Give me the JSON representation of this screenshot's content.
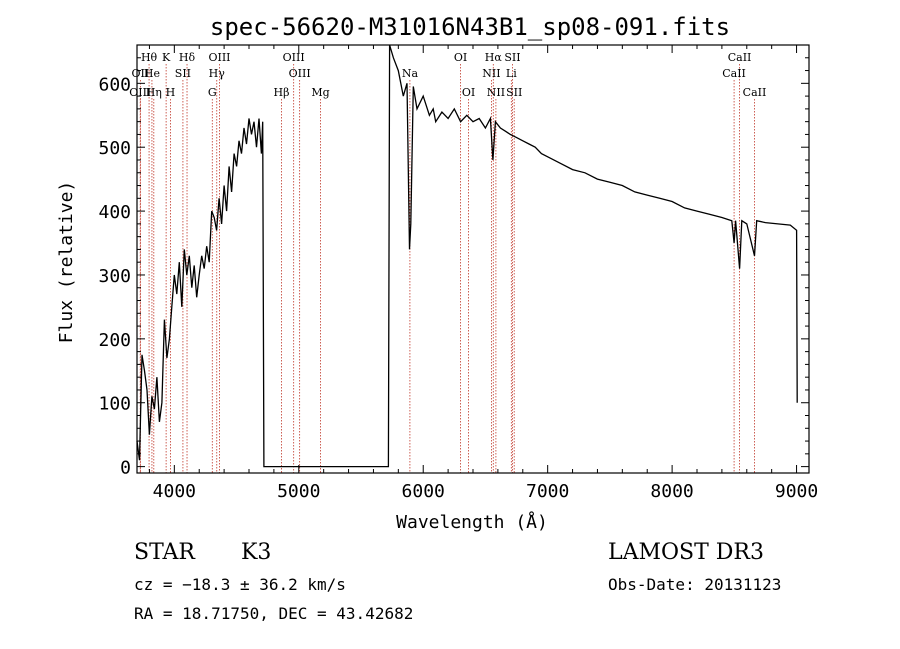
{
  "chart_data": {
    "type": "line",
    "title": "spec-56620-M31016N43B1_sp08-091.fits",
    "xlabel": "Wavelength (Å)",
    "ylabel": "Flux (relative)",
    "xlim": [
      3700,
      9100
    ],
    "ylim": [
      -10,
      660
    ],
    "x_ticks": [
      4000,
      5000,
      6000,
      7000,
      8000,
      9000
    ],
    "y_ticks": [
      0,
      100,
      200,
      300,
      400,
      500,
      600
    ],
    "grid": false,
    "series": [
      {
        "name": "spectrum",
        "points": [
          [
            3700,
            40
          ],
          [
            3720,
            10
          ],
          [
            3740,
            175
          ],
          [
            3760,
            150
          ],
          [
            3780,
            120
          ],
          [
            3800,
            50
          ],
          [
            3820,
            110
          ],
          [
            3840,
            90
          ],
          [
            3860,
            140
          ],
          [
            3880,
            70
          ],
          [
            3900,
            100
          ],
          [
            3920,
            230
          ],
          [
            3940,
            170
          ],
          [
            3960,
            200
          ],
          [
            3980,
            250
          ],
          [
            4000,
            300
          ],
          [
            4020,
            270
          ],
          [
            4040,
            320
          ],
          [
            4060,
            250
          ],
          [
            4080,
            340
          ],
          [
            4100,
            300
          ],
          [
            4120,
            330
          ],
          [
            4140,
            280
          ],
          [
            4160,
            315
          ],
          [
            4180,
            265
          ],
          [
            4200,
            300
          ],
          [
            4220,
            330
          ],
          [
            4240,
            310
          ],
          [
            4260,
            345
          ],
          [
            4280,
            320
          ],
          [
            4300,
            400
          ],
          [
            4320,
            390
          ],
          [
            4340,
            370
          ],
          [
            4360,
            420
          ],
          [
            4380,
            380
          ],
          [
            4400,
            440
          ],
          [
            4420,
            400
          ],
          [
            4440,
            470
          ],
          [
            4460,
            430
          ],
          [
            4480,
            490
          ],
          [
            4500,
            470
          ],
          [
            4520,
            510
          ],
          [
            4540,
            490
          ],
          [
            4560,
            530
          ],
          [
            4580,
            505
          ],
          [
            4600,
            545
          ],
          [
            4620,
            520
          ],
          [
            4640,
            540
          ],
          [
            4660,
            500
          ],
          [
            4680,
            545
          ],
          [
            4700,
            490
          ],
          [
            4710,
            540
          ],
          [
            4720,
            0
          ],
          [
            5720,
            0
          ],
          [
            5730,
            660
          ],
          [
            5760,
            640
          ],
          [
            5800,
            620
          ],
          [
            5840,
            580
          ],
          [
            5870,
            600
          ],
          [
            5890,
            340
          ],
          [
            5900,
            380
          ],
          [
            5920,
            595
          ],
          [
            5950,
            560
          ],
          [
            6000,
            580
          ],
          [
            6050,
            550
          ],
          [
            6080,
            560
          ],
          [
            6100,
            540
          ],
          [
            6150,
            555
          ],
          [
            6200,
            545
          ],
          [
            6250,
            560
          ],
          [
            6300,
            540
          ],
          [
            6350,
            550
          ],
          [
            6400,
            540
          ],
          [
            6450,
            545
          ],
          [
            6500,
            530
          ],
          [
            6540,
            545
          ],
          [
            6560,
            480
          ],
          [
            6580,
            540
          ],
          [
            6620,
            530
          ],
          [
            6660,
            525
          ],
          [
            6700,
            520
          ],
          [
            6750,
            515
          ],
          [
            6800,
            510
          ],
          [
            6850,
            505
          ],
          [
            6900,
            500
          ],
          [
            6950,
            490
          ],
          [
            7000,
            485
          ],
          [
            7100,
            475
          ],
          [
            7200,
            465
          ],
          [
            7300,
            460
          ],
          [
            7400,
            450
          ],
          [
            7500,
            445
          ],
          [
            7600,
            440
          ],
          [
            7700,
            430
          ],
          [
            7800,
            425
          ],
          [
            7900,
            420
          ],
          [
            8000,
            415
          ],
          [
            8100,
            405
          ],
          [
            8200,
            400
          ],
          [
            8300,
            395
          ],
          [
            8400,
            390
          ],
          [
            8480,
            385
          ],
          [
            8498,
            350
          ],
          [
            8510,
            385
          ],
          [
            8542,
            310
          ],
          [
            8560,
            385
          ],
          [
            8600,
            380
          ],
          [
            8662,
            330
          ],
          [
            8680,
            385
          ],
          [
            8750,
            382
          ],
          [
            8850,
            380
          ],
          [
            8950,
            378
          ],
          [
            9000,
            370
          ],
          [
            9005,
            100
          ]
        ]
      }
    ],
    "lines": [
      {
        "label": "Hθ",
        "wavelength": 3797,
        "row": 1
      },
      {
        "label": "OII",
        "wavelength": 3727,
        "row": 2
      },
      {
        "label": "OIII",
        "wavelength": 3726,
        "row": 3
      },
      {
        "label": "He",
        "wavelength": 3820,
        "row": 2
      },
      {
        "label": "Hη",
        "wavelength": 3835,
        "row": 3
      },
      {
        "label": "K",
        "wavelength": 3934,
        "row": 1
      },
      {
        "label": "SII",
        "wavelength": 4069,
        "row": 2
      },
      {
        "label": "H",
        "wavelength": 3969,
        "row": 3
      },
      {
        "label": "Hδ",
        "wavelength": 4102,
        "row": 1
      },
      {
        "label": "OIII",
        "wavelength": 4363,
        "row": 1
      },
      {
        "label": "Hγ",
        "wavelength": 4341,
        "row": 2
      },
      {
        "label": "G",
        "wavelength": 4305,
        "row": 3
      },
      {
        "label": "Hβ",
        "wavelength": 4861,
        "row": 3
      },
      {
        "label": "OIII",
        "wavelength": 4959,
        "row": 1
      },
      {
        "label": "OIII",
        "wavelength": 5007,
        "row": 2
      },
      {
        "label": "Mg",
        "wavelength": 5175,
        "row": 3
      },
      {
        "label": "Na",
        "wavelength": 5893,
        "row": 2
      },
      {
        "label": "OI",
        "wavelength": 6300,
        "row": 1
      },
      {
        "label": "OI",
        "wavelength": 6364,
        "row": 3
      },
      {
        "label": "Hα",
        "wavelength": 6563,
        "row": 1
      },
      {
        "label": "NII",
        "wavelength": 6548,
        "row": 2
      },
      {
        "label": "NII",
        "wavelength": 6584,
        "row": 3
      },
      {
        "label": "SII",
        "wavelength": 6717,
        "row": 1
      },
      {
        "label": "Li",
        "wavelength": 6708,
        "row": 2
      },
      {
        "label": "SII",
        "wavelength": 6731,
        "row": 3
      },
      {
        "label": "CaII",
        "wavelength": 8542,
        "row": 1
      },
      {
        "label": "CaII",
        "wavelength": 8498,
        "row": 2
      },
      {
        "label": "CaII",
        "wavelength": 8662,
        "row": 3
      }
    ]
  },
  "info": {
    "class": "STAR",
    "subclass": "K3",
    "survey": "LAMOST DR3",
    "cz": "cz = −18.3 ± 36.2 km/s",
    "obsdate": "Obs-Date: 20131123",
    "radec": "RA =  18.71750, DEC =  43.42682"
  },
  "colors": {
    "line_marker": "#c0392b",
    "spectrum": "#000000"
  }
}
